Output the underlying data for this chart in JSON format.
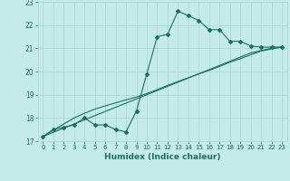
{
  "xlabel": "Humidex (Indice chaleur)",
  "x_values": [
    0,
    1,
    2,
    3,
    4,
    5,
    6,
    7,
    8,
    9,
    10,
    11,
    12,
    13,
    14,
    15,
    16,
    17,
    18,
    19,
    20,
    21,
    22,
    23
  ],
  "y_main": [
    17.2,
    17.5,
    17.6,
    17.7,
    18.0,
    17.7,
    17.7,
    17.5,
    17.4,
    18.3,
    19.9,
    21.5,
    21.6,
    22.6,
    22.4,
    22.2,
    21.8,
    21.8,
    21.3,
    21.3,
    21.1,
    21.05,
    21.05,
    21.05
  ],
  "y_line1": [
    17.2,
    17.38,
    17.56,
    17.74,
    17.92,
    18.1,
    18.28,
    18.46,
    18.64,
    18.82,
    19.0,
    19.18,
    19.36,
    19.54,
    19.72,
    19.9,
    20.08,
    20.26,
    20.44,
    20.62,
    20.8,
    20.9,
    21.0,
    21.05
  ],
  "y_line2": [
    17.2,
    17.47,
    17.74,
    18.0,
    18.2,
    18.38,
    18.52,
    18.65,
    18.78,
    18.9,
    19.05,
    19.22,
    19.4,
    19.57,
    19.73,
    19.9,
    20.05,
    20.22,
    20.4,
    20.55,
    20.72,
    20.88,
    20.97,
    21.05
  ],
  "line_color": "#1a7060",
  "bg_color": "#c5ebe8",
  "grid_color": "#a8d5d2",
  "text_color": "#1a7060",
  "ylim": [
    17.0,
    23.0
  ],
  "xlim": [
    -0.5,
    23.5
  ],
  "yticks": [
    17,
    18,
    19,
    20,
    21,
    22,
    23
  ],
  "xticks": [
    0,
    1,
    2,
    3,
    4,
    5,
    6,
    7,
    8,
    9,
    10,
    11,
    12,
    13,
    14,
    15,
    16,
    17,
    18,
    19,
    20,
    21,
    22,
    23
  ]
}
